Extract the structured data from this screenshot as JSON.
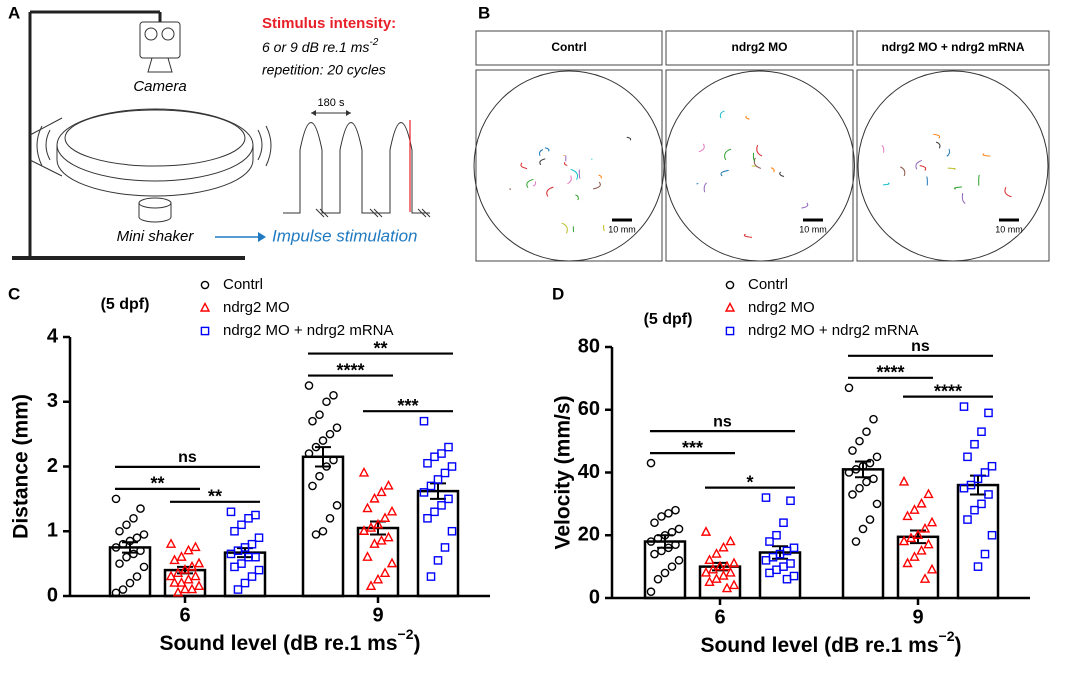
{
  "panels": {
    "A": {
      "label": "A",
      "camera": "Camera",
      "stimulus_title": "Stimulus intensity:",
      "intensity": [
        "6 or 9 dB re.1 ms",
        "-2"
      ],
      "repetition": "repetition: 20 cycles",
      "interval": "180 s",
      "shaker": "Mini shaker",
      "stimulation": "Impulse stimulation"
    },
    "B": {
      "label": "B",
      "headers": [
        "Contrl",
        "ndrg2 MO",
        "ndrg2 MO + ndrg2 mRNA"
      ],
      "scale": [
        "10 mm",
        "10 mm",
        "10 mm"
      ]
    }
  },
  "chart_data": [
    {
      "type": "bar",
      "label": "C",
      "annotation": "(5 dpf)",
      "ylabel": "Distance (mm)",
      "xlabel": [
        "Sound level (dB re.1 ms",
        "−2",
        ")"
      ],
      "categories": [
        "6",
        "9"
      ],
      "ylim": [
        0,
        4
      ],
      "yticks": [
        0,
        1,
        2,
        3,
        4
      ],
      "series": [
        {
          "name": "Contrl",
          "color": "#000000",
          "marker": "circle",
          "values": [
            0.75,
            2.15
          ],
          "errors": [
            0.08,
            0.15
          ],
          "points": [
            [
              1.5,
              1.35,
              1.2,
              1.1,
              1.0,
              0.95,
              0.9,
              0.85,
              0.8,
              0.75,
              0.7,
              0.65,
              0.6,
              0.5,
              0.45,
              0.3,
              0.2,
              0.1,
              0.05
            ],
            [
              3.25,
              3.1,
              3.0,
              2.8,
              2.7,
              2.6,
              2.5,
              2.4,
              2.3,
              2.2,
              2.1,
              2.0,
              1.85,
              1.7,
              1.4,
              1.2,
              1.0,
              0.95
            ]
          ]
        },
        {
          "name": "ndrg2 MO",
          "color": "#ff0000",
          "marker": "triangle",
          "values": [
            0.4,
            1.05
          ],
          "errors": [
            0.05,
            0.1
          ],
          "points": [
            [
              0.8,
              0.75,
              0.7,
              0.6,
              0.55,
              0.5,
              0.45,
              0.4,
              0.35,
              0.3,
              0.3,
              0.25,
              0.2,
              0.2,
              0.15,
              0.1,
              0.1,
              0.05
            ],
            [
              1.9,
              1.7,
              1.6,
              1.5,
              1.35,
              1.3,
              1.2,
              1.1,
              1.05,
              1.0,
              0.9,
              0.85,
              0.8,
              0.6,
              0.5,
              0.35,
              0.25,
              0.15
            ]
          ]
        },
        {
          "name": "ndrg2 MO + ndrg2 mRNA",
          "color": "#0000ff",
          "marker": "square",
          "values": [
            0.67,
            1.62
          ],
          "errors": [
            0.07,
            0.12
          ],
          "points": [
            [
              1.3,
              1.25,
              1.2,
              1.1,
              1.0,
              0.9,
              0.8,
              0.75,
              0.7,
              0.65,
              0.6,
              0.6,
              0.5,
              0.45,
              0.4,
              0.3,
              0.2,
              0.1
            ],
            [
              2.7,
              2.3,
              2.2,
              2.15,
              2.05,
              2.0,
              1.9,
              1.8,
              1.7,
              1.6,
              1.5,
              1.4,
              1.3,
              1.2,
              1.0,
              0.75,
              0.55,
              0.3
            ]
          ]
        }
      ],
      "significance": [
        [
          "**",
          "**",
          "ns"
        ],
        [
          "****",
          "***",
          "**"
        ]
      ]
    },
    {
      "type": "bar",
      "label": "D",
      "annotation": "(5 dpf)",
      "ylabel": "Velocity (mm/s)",
      "xlabel": [
        "Sound level (dB re.1 ms",
        "−2",
        ")"
      ],
      "categories": [
        "6",
        "9"
      ],
      "ylim": [
        0,
        80
      ],
      "yticks": [
        0,
        20,
        40,
        60,
        80
      ],
      "series": [
        {
          "name": "Contrl",
          "color": "#000000",
          "marker": "circle",
          "values": [
            18,
            41
          ],
          "errors": [
            2,
            2.5
          ],
          "points": [
            [
              43,
              28,
              27,
              26,
              24,
              22,
              21,
              20,
              19,
              18,
              17,
              16,
              15,
              14,
              12,
              10,
              8,
              6,
              2
            ],
            [
              67,
              57,
              53,
              50,
              47,
              45,
              43,
              42,
              41,
              40,
              38,
              37,
              35,
              33,
              30,
              25,
              22,
              18
            ]
          ]
        },
        {
          "name": "ndrg2 MO",
          "color": "#ff0000",
          "marker": "triangle",
          "values": [
            10,
            19.5
          ],
          "errors": [
            1.2,
            2
          ],
          "points": [
            [
              21,
              18,
              16,
              14,
              12,
              11,
              10,
              10,
              9,
              8,
              8,
              7,
              6,
              5,
              4,
              3
            ],
            [
              37,
              33,
              30,
              28,
              26,
              24,
              22,
              20,
              19,
              18,
              17,
              15,
              13,
              11,
              9,
              6
            ]
          ]
        },
        {
          "name": "ndrg2 MO + ndrg2 mRNA",
          "color": "#0000ff",
          "marker": "square",
          "values": [
            14.5,
            36
          ],
          "errors": [
            2,
            3
          ],
          "points": [
            [
              32,
              31,
              24,
              20,
              18,
              16,
              15,
              14,
              13,
              12,
              11,
              10,
              9,
              8,
              7,
              6
            ],
            [
              61,
              59,
              53,
              49,
              45,
              42,
              40,
              38,
              36,
              35,
              33,
              30,
              28,
              25,
              20,
              14,
              10
            ]
          ]
        }
      ],
      "significance": [
        [
          "***",
          "*",
          "ns"
        ],
        [
          "****",
          "****",
          "ns"
        ]
      ]
    }
  ]
}
